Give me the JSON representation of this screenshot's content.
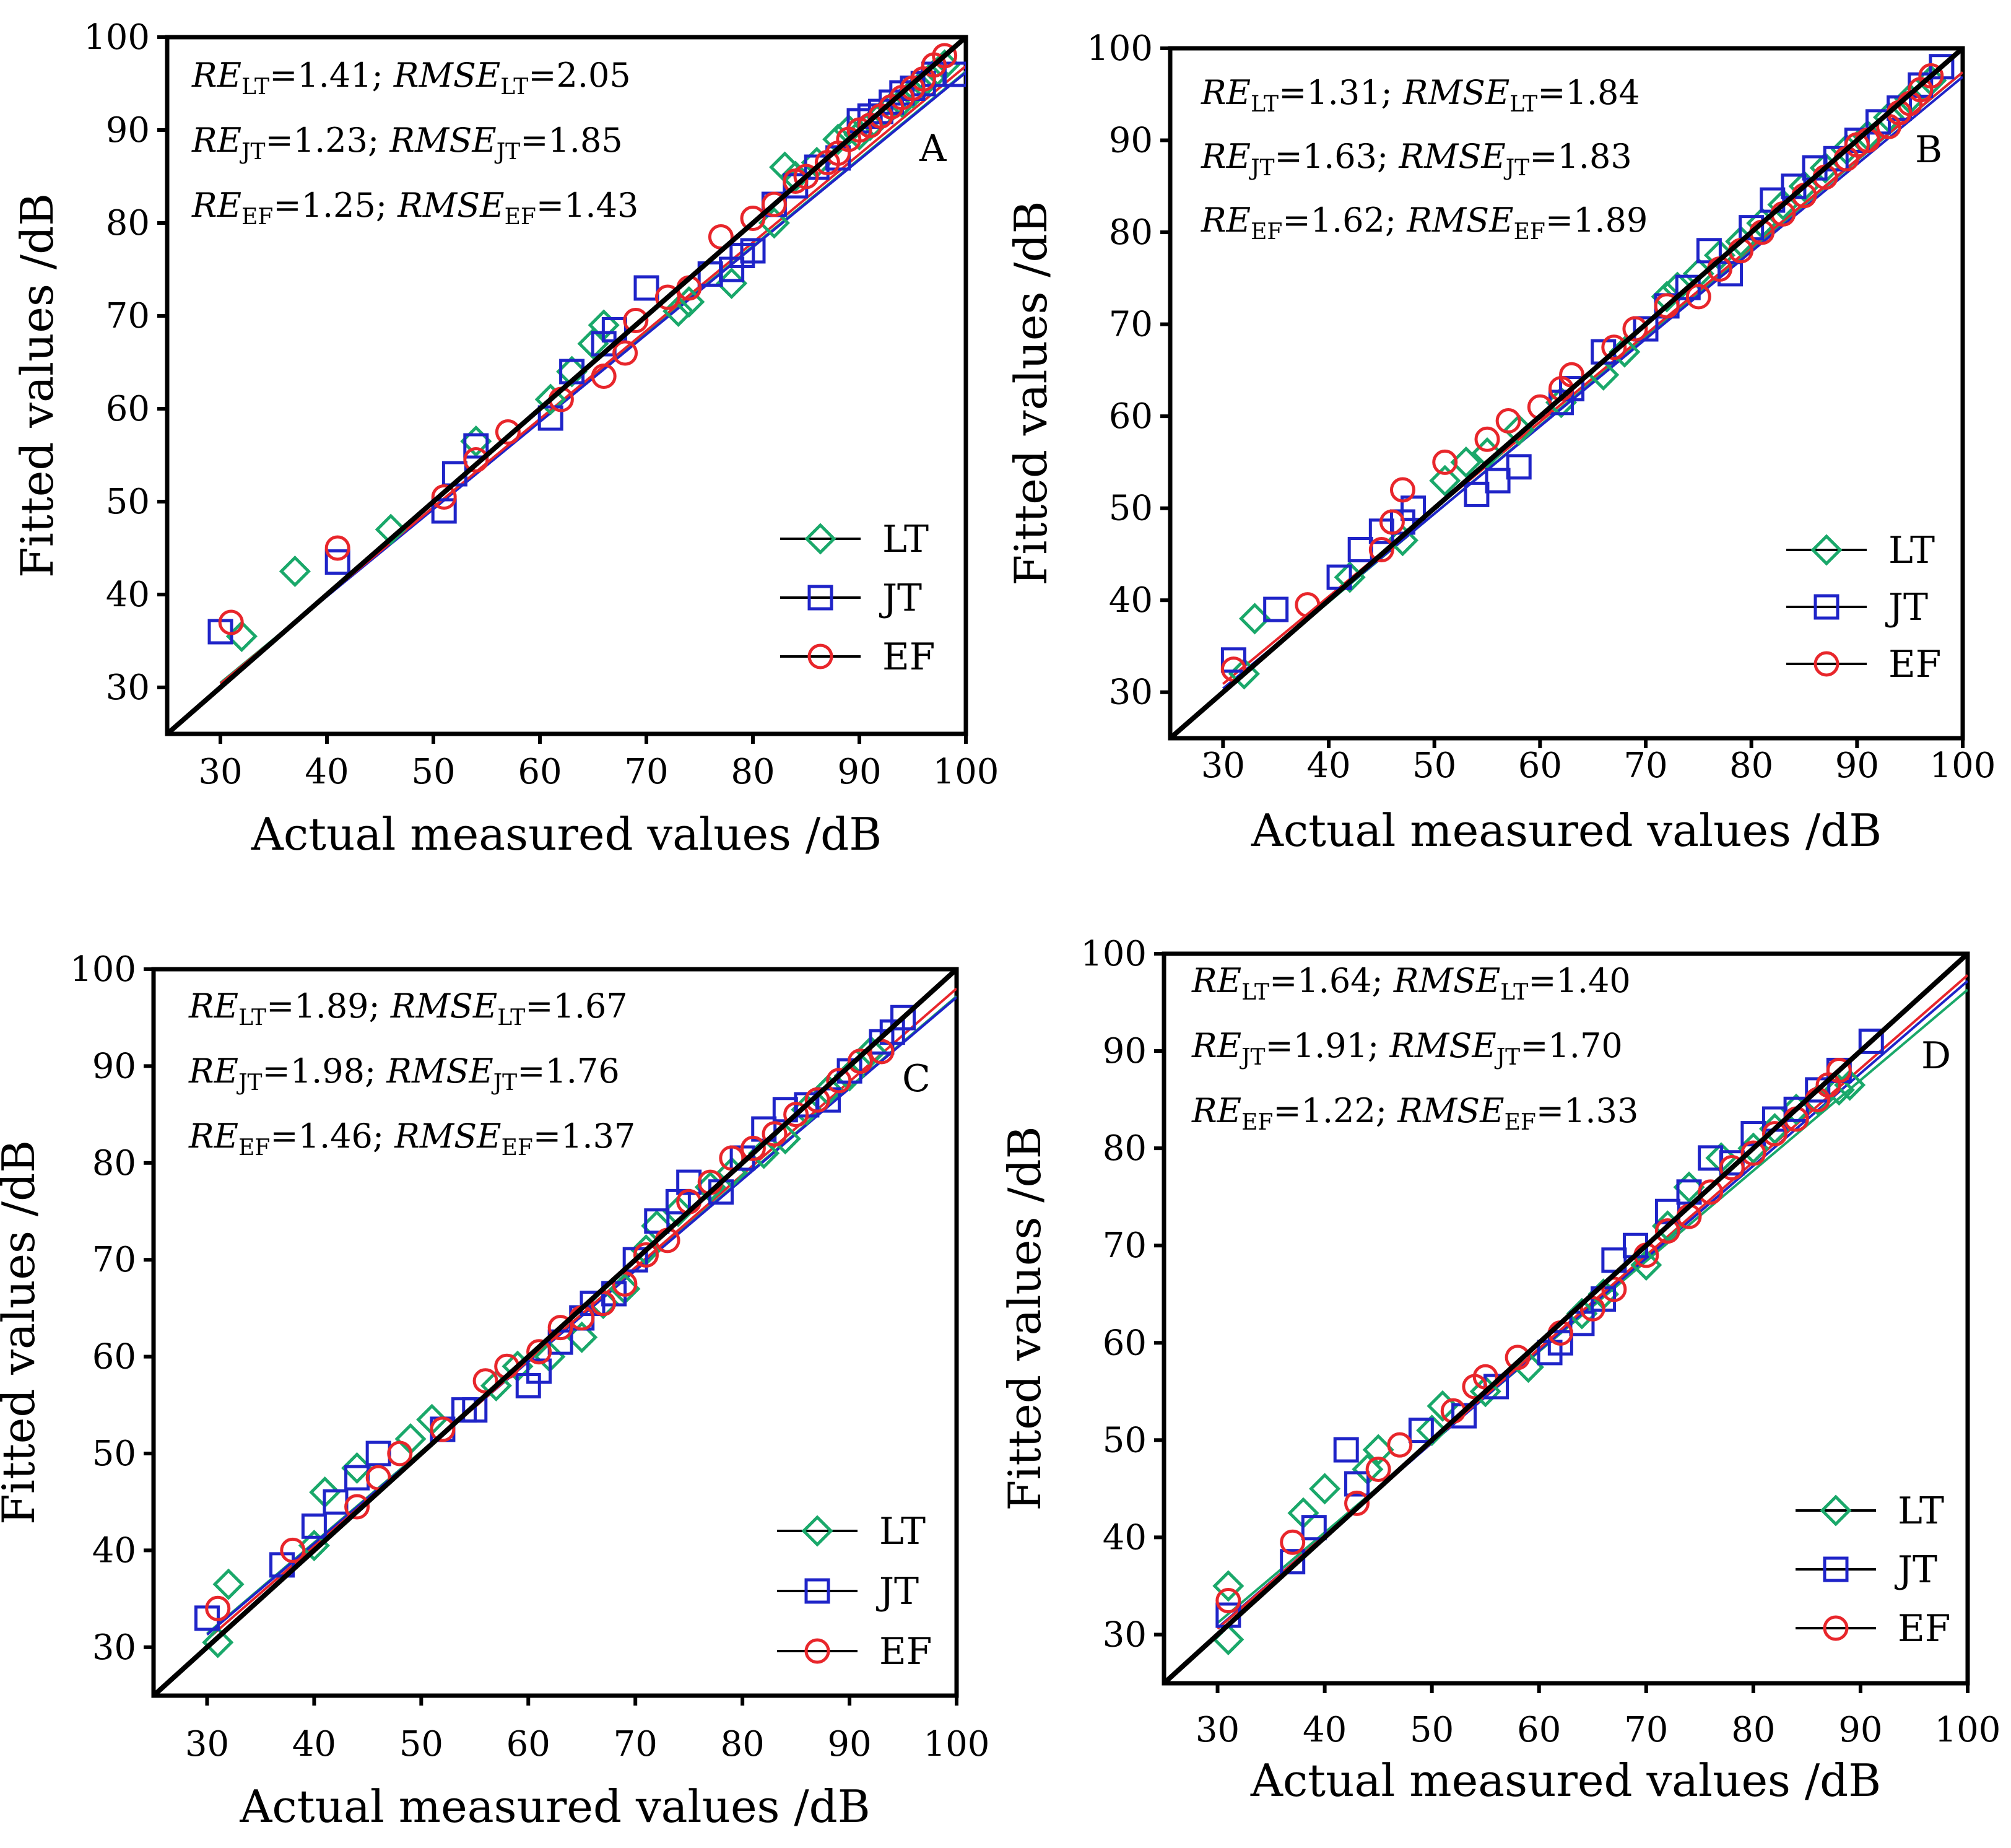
{
  "figure": {
    "panels": [
      "A",
      "B",
      "C",
      "D"
    ]
  },
  "colors": {
    "LT": "#1aa86a",
    "JT": "#1f24c8",
    "EF": "#e8262b",
    "axis": "#000000",
    "diagonal": "#000000"
  },
  "chart_data": [
    {
      "type": "scatter",
      "panel": "A",
      "xlabel": "Actual measured values /dB",
      "ylabel": "Fitted values /dB",
      "xlim": [
        25,
        100
      ],
      "ylim": [
        25,
        100
      ],
      "xticks": [
        "30",
        "40",
        "50",
        "60",
        "70",
        "80",
        "90",
        "100"
      ],
      "yticks": [
        "30",
        "40",
        "50",
        "60",
        "70",
        "80",
        "90",
        "100"
      ],
      "legend": [
        "LT",
        "JT",
        "EF"
      ],
      "stats": [
        {
          "s1": "RE",
          "sub1": "LT",
          "v1": "=1.41; ",
          "s2": "RMSE",
          "sub2": "LT",
          "v2": "=2.05"
        },
        {
          "s1": "RE",
          "sub1": "JT",
          "v1": "=1.23; ",
          "s2": "RMSE",
          "sub2": "JT",
          "v2": "=1.85"
        },
        {
          "s1": "RE",
          "sub1": "EF",
          "v1": "=1.25; ",
          "s2": "RMSE",
          "sub2": "EF",
          "v2": "=1.43"
        }
      ],
      "fits": {
        "LT": [
          0.94,
          2.3
        ],
        "JT": [
          0.94,
          2.2
        ],
        "EF": [
          0.95,
          1.9
        ]
      },
      "series": [
        {
          "name": "LT",
          "marker": "diamond",
          "x": [
            32,
            37,
            46,
            54,
            61,
            63,
            65,
            66,
            73,
            74,
            78,
            82,
            83,
            84,
            86,
            88,
            89,
            90,
            91,
            92,
            93,
            94,
            95,
            96,
            97,
            98
          ],
          "y": [
            35.5,
            42.5,
            47,
            56.5,
            61,
            64,
            67,
            69,
            70.5,
            71.5,
            73.5,
            80,
            86,
            85,
            86.5,
            89,
            90,
            89.5,
            90.5,
            91.5,
            92.5,
            93,
            94,
            95,
            96,
            97
          ]
        },
        {
          "name": "JT",
          "marker": "square",
          "x": [
            30,
            41,
            51,
            52,
            54,
            61,
            63,
            66,
            67,
            70,
            76,
            78,
            79,
            80,
            82,
            84,
            86,
            88,
            90,
            91,
            92,
            93,
            94,
            95,
            96,
            97,
            99
          ],
          "y": [
            36,
            43.5,
            49,
            53,
            56,
            59,
            64,
            67,
            68.5,
            73,
            74.5,
            75,
            76.5,
            77,
            82,
            84,
            86,
            87,
            91,
            91.5,
            92,
            93,
            94,
            94.5,
            95,
            96,
            96
          ]
        },
        {
          "name": "EF",
          "marker": "circle",
          "x": [
            31,
            41,
            51,
            54,
            57,
            62,
            66,
            68,
            69,
            72,
            74,
            77,
            80,
            82,
            84,
            85,
            87,
            88,
            89,
            90,
            91,
            92,
            93,
            94,
            95,
            96,
            97,
            98
          ],
          "y": [
            37,
            45,
            50.5,
            54.5,
            57.5,
            61,
            63.5,
            66,
            69.5,
            72,
            73,
            78.5,
            80.5,
            82,
            84.5,
            85,
            86.5,
            87.5,
            89,
            90,
            90.5,
            91.5,
            92.5,
            93.5,
            94.5,
            95.5,
            97,
            98
          ]
        }
      ]
    },
    {
      "type": "scatter",
      "panel": "B",
      "xlabel": "Actual measured values /dB",
      "ylabel": "Fitted values /dB",
      "xlim": [
        25,
        100
      ],
      "ylim": [
        25,
        100
      ],
      "xticks": [
        "30",
        "40",
        "50",
        "60",
        "70",
        "80",
        "90",
        "100"
      ],
      "yticks": [
        "30",
        "40",
        "50",
        "60",
        "70",
        "80",
        "90",
        "100"
      ],
      "legend": [
        "LT",
        "JT",
        "EF"
      ],
      "stats": [
        {
          "s1": "RE",
          "sub1": "LT",
          "v1": "=1.31; ",
          "s2": "RMSE",
          "sub2": "LT",
          "v2": "=1.84"
        },
        {
          "s1": "RE",
          "sub1": "JT",
          "v1": "=1.63; ",
          "s2": "RMSE",
          "sub2": "JT",
          "v2": "=1.83"
        },
        {
          "s1": "RE",
          "sub1": "EF",
          "v1": "=1.62; ",
          "s2": "RMSE",
          "sub2": "EF",
          "v2": "=1.89"
        }
      ],
      "fits": {
        "LT": [
          0.96,
          1.4
        ],
        "JT": [
          0.95,
          1.9
        ],
        "EF": [
          0.95,
          2.4
        ]
      },
      "series": [
        {
          "name": "LT",
          "marker": "diamond",
          "x": [
            32,
            33,
            42,
            47,
            51,
            53,
            55,
            58,
            62,
            66,
            68,
            72,
            73,
            75,
            77,
            79,
            81,
            83,
            85,
            87,
            89,
            91,
            93,
            95,
            97
          ],
          "y": [
            32,
            38,
            42.5,
            46.5,
            53,
            55,
            56,
            58.5,
            61.5,
            64.5,
            67,
            73,
            74,
            75.5,
            77.5,
            79,
            81,
            83,
            85,
            87,
            89,
            90.5,
            92.5,
            94.5,
            96.5
          ]
        },
        {
          "name": "JT",
          "marker": "square",
          "x": [
            31,
            35,
            41,
            43,
            45,
            47,
            48,
            54,
            56,
            58,
            62,
            63,
            66,
            70,
            72,
            74,
            76,
            78,
            80,
            82,
            84,
            86,
            88,
            90,
            92,
            94,
            96,
            98
          ],
          "y": [
            33.5,
            39,
            42.5,
            45.5,
            47.5,
            48.5,
            50,
            51.5,
            53,
            54.5,
            61.5,
            63,
            67,
            69.5,
            72,
            74,
            78,
            75.5,
            80.5,
            83.5,
            85,
            87,
            88,
            90,
            92,
            93.5,
            96,
            98
          ]
        },
        {
          "name": "EF",
          "marker": "circle",
          "x": [
            31,
            38,
            45,
            46,
            47,
            51,
            55,
            57,
            60,
            62,
            63,
            67,
            69,
            72,
            75,
            77,
            79,
            81,
            83,
            85,
            87,
            89,
            90,
            91,
            93,
            94,
            95,
            96,
            97
          ],
          "y": [
            32.5,
            39.5,
            45.5,
            48.5,
            52,
            55,
            57.5,
            59.5,
            61,
            63,
            64.5,
            67.5,
            69.5,
            72,
            73,
            76,
            78,
            80,
            82,
            84,
            86,
            88,
            89.5,
            90,
            91.5,
            93,
            94,
            95.5,
            97
          ]
        }
      ]
    },
    {
      "type": "scatter",
      "panel": "C",
      "xlabel": "Actual measured values /dB",
      "ylabel": "Fitted values /dB",
      "xlim": [
        25,
        100
      ],
      "ylim": [
        25,
        100
      ],
      "xticks": [
        "30",
        "40",
        "50",
        "60",
        "70",
        "80",
        "90",
        "100"
      ],
      "yticks": [
        "30",
        "40",
        "50",
        "60",
        "70",
        "80",
        "90",
        "100"
      ],
      "legend": [
        "LT",
        "JT",
        "EF"
      ],
      "stats": [
        {
          "s1": "RE",
          "sub1": "LT",
          "v1": "=1.89; ",
          "s2": "RMSE",
          "sub2": "LT",
          "v2": "=1.67"
        },
        {
          "s1": "RE",
          "sub1": "JT",
          "v1": "=1.98; ",
          "s2": "RMSE",
          "sub2": "JT",
          "v2": "=1.76"
        },
        {
          "s1": "RE",
          "sub1": "EF",
          "v1": "=1.46; ",
          "s2": "RMSE",
          "sub2": "EF",
          "v2": "=1.37"
        }
      ],
      "fits": {
        "LT": [
          0.94,
          3.2
        ],
        "JT": [
          0.94,
          3.1
        ],
        "EF": [
          0.96,
          2.0
        ]
      },
      "series": [
        {
          "name": "LT",
          "marker": "diamond",
          "x": [
            31,
            32,
            40,
            41,
            44,
            49,
            51,
            57,
            59,
            62,
            65,
            67,
            69,
            71,
            72,
            74,
            77,
            79,
            82,
            84,
            86,
            88,
            90,
            92
          ],
          "y": [
            30.5,
            36.5,
            40.5,
            46,
            48.5,
            51.5,
            53.5,
            57,
            59,
            60,
            62,
            65.5,
            67,
            71,
            73.5,
            75,
            77.5,
            79,
            81,
            82.5,
            85.5,
            87.5,
            89,
            91.5
          ]
        },
        {
          "name": "JT",
          "marker": "square",
          "x": [
            30,
            37,
            40,
            42,
            44,
            46,
            52,
            54,
            55,
            60,
            61,
            63,
            65,
            66,
            68,
            70,
            72,
            74,
            75,
            78,
            80,
            82,
            84,
            86,
            88,
            90,
            93,
            94,
            95
          ],
          "y": [
            33,
            38.5,
            42.5,
            45,
            47.5,
            50,
            52.5,
            54.5,
            54.5,
            57,
            58.5,
            61.5,
            64,
            65.5,
            66.5,
            70,
            74,
            76,
            78,
            77,
            80.5,
            83.5,
            85.5,
            86,
            86.5,
            89.5,
            92.5,
            93.5,
            95
          ]
        },
        {
          "name": "EF",
          "marker": "circle",
          "x": [
            31,
            38,
            44,
            46,
            48,
            52,
            56,
            58,
            61,
            63,
            65,
            67,
            69,
            71,
            73,
            75,
            77,
            79,
            81,
            83,
            85,
            87,
            89,
            91,
            93
          ],
          "y": [
            34,
            40,
            44.5,
            47.5,
            50,
            52.5,
            57.5,
            59,
            60.5,
            63,
            64,
            65.5,
            67.5,
            70.5,
            72,
            76,
            78,
            80.5,
            81.5,
            83,
            85,
            86.5,
            88.5,
            90.5,
            91.5
          ]
        }
      ]
    },
    {
      "type": "scatter",
      "panel": "D",
      "xlabel": "Actual measured values /dB",
      "ylabel": "Fitted values /dB",
      "xlim": [
        25,
        100
      ],
      "ylim": [
        25,
        100
      ],
      "xticks": [
        "30",
        "40",
        "50",
        "60",
        "70",
        "80",
        "90",
        "100"
      ],
      "yticks": [
        "30",
        "40",
        "50",
        "60",
        "70",
        "80",
        "90",
        "100"
      ],
      "legend": [
        "LT",
        "JT",
        "EF"
      ],
      "stats": [
        {
          "s1": "RE",
          "sub1": "LT",
          "v1": "=1.64; ",
          "s2": "RMSE",
          "sub2": "LT",
          "v2": "=1.40"
        },
        {
          "s1": "RE",
          "sub1": "JT",
          "v1": "=1.91; ",
          "s2": "RMSE",
          "sub2": "JT",
          "v2": "=1.70"
        },
        {
          "s1": "RE",
          "sub1": "EF",
          "v1": "=1.22; ",
          "s2": "RMSE",
          "sub2": "EF",
          "v2": "=1.33"
        }
      ],
      "fits": {
        "LT": [
          0.93,
          3.3
        ],
        "JT": [
          0.95,
          2.2
        ],
        "EF": [
          0.96,
          1.8
        ]
      },
      "series": [
        {
          "name": "LT",
          "marker": "diamond",
          "x": [
            31,
            31,
            38,
            40,
            44,
            45,
            50,
            51,
            55,
            59,
            64,
            66,
            70,
            72,
            74,
            77,
            80,
            82,
            84,
            86,
            88,
            89
          ],
          "y": [
            35,
            29.5,
            42.5,
            45,
            47,
            49,
            51,
            53.5,
            55,
            57.5,
            63,
            65,
            68,
            72,
            76,
            79,
            80,
            82,
            84,
            85,
            86,
            86.5
          ]
        },
        {
          "name": "JT",
          "marker": "square",
          "x": [
            31,
            37,
            39,
            42,
            43,
            49,
            53,
            56,
            61,
            62,
            64,
            66,
            67,
            69,
            72,
            74,
            76,
            78,
            80,
            82,
            84,
            86,
            88,
            91
          ],
          "y": [
            32,
            37.5,
            41,
            49,
            45.5,
            51,
            52.5,
            55.5,
            59,
            60,
            62,
            64.5,
            68.5,
            70,
            73.5,
            75.5,
            79,
            78.5,
            81.5,
            83,
            84,
            86,
            88,
            91
          ]
        },
        {
          "name": "EF",
          "marker": "circle",
          "x": [
            31,
            37,
            43,
            45,
            47,
            52,
            54,
            55,
            58,
            62,
            65,
            67,
            70,
            72,
            74,
            76,
            78,
            80,
            82,
            84,
            86,
            87,
            88
          ],
          "y": [
            33.5,
            39.5,
            43.5,
            47,
            49.5,
            53,
            55.5,
            56.5,
            58.5,
            61,
            63.5,
            65.5,
            69,
            71.5,
            73,
            75.5,
            78,
            79.5,
            81.5,
            83,
            85,
            86.5,
            88
          ]
        }
      ]
    }
  ]
}
